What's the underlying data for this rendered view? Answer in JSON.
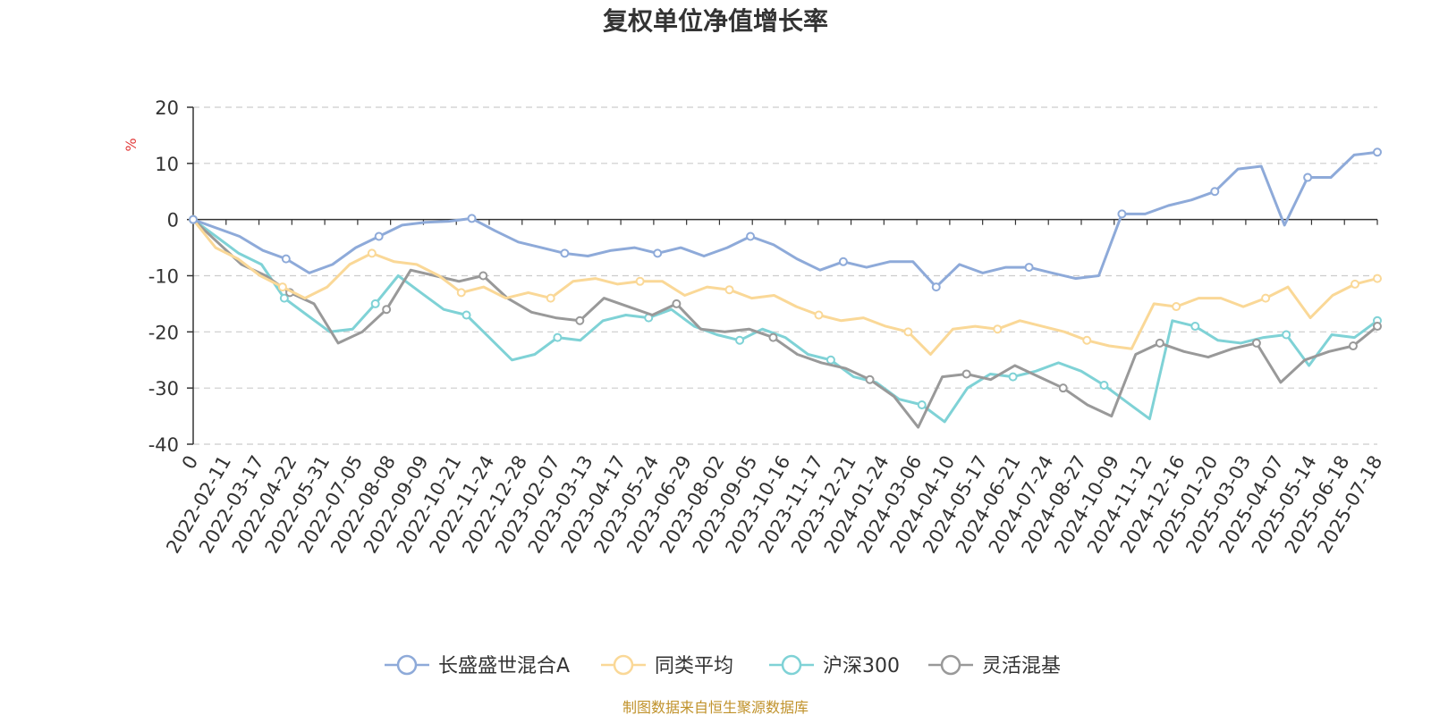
{
  "chart_data": {
    "type": "line",
    "title": "复权单位净值增长率",
    "ylabel": "%",
    "ylim": [
      -40,
      20
    ],
    "yticks": [
      20,
      10,
      0,
      -10,
      -20,
      -30,
      -40
    ],
    "grid": true,
    "legend_position": "bottom",
    "source": "制图数据来自恒生聚源数据库",
    "x_tick_labels": [
      "0",
      "2022-02-11",
      "2022-03-17",
      "2022-04-22",
      "2022-05-31",
      "2022-07-05",
      "2022-08-08",
      "2022-09-09",
      "2022-10-21",
      "2022-11-24",
      "2022-12-28",
      "2023-02-07",
      "2023-03-13",
      "2023-04-17",
      "2023-05-24",
      "2023-06-29",
      "2023-08-02",
      "2023-09-05",
      "2023-10-16",
      "2023-11-17",
      "2023-12-21",
      "2024-01-24",
      "2024-03-06",
      "2024-04-10",
      "2024-05-17",
      "2024-06-21",
      "2024-07-24",
      "2024-08-27",
      "2024-10-09",
      "2024-11-12",
      "2024-12-16",
      "2025-01-20",
      "2025-03-03",
      "2025-04-07",
      "2025-05-14",
      "2025-06-18",
      "2025-07-18"
    ],
    "series": [
      {
        "name": "长盛盛世混合A",
        "color": "#8eaad9",
        "values": [
          0,
          -1.5,
          -3,
          -5.5,
          -7,
          -9.5,
          -8,
          -5,
          -3,
          -1,
          -0.5,
          -0.3,
          0.2,
          -2,
          -4,
          -5,
          -6,
          -6.5,
          -5.5,
          -5,
          -6,
          -5,
          -6.5,
          -5,
          -3,
          -4.5,
          -7,
          -9,
          -7.5,
          -8.5,
          -7.5,
          -7.5,
          -12,
          -8,
          -9.5,
          -8.5,
          -8.5,
          -9.5,
          -10.5,
          -10,
          1,
          1,
          2.5,
          3.5,
          5,
          9,
          9.5,
          -1,
          7.5,
          7.5,
          11.5,
          12
        ]
      },
      {
        "name": "同类平均",
        "color": "#fad897",
        "values": [
          0,
          -5,
          -7,
          -10,
          -12,
          -14,
          -12,
          -8,
          -6,
          -7.5,
          -8,
          -10,
          -13,
          -12,
          -14,
          -13,
          -14,
          -11,
          -10.5,
          -11.5,
          -11,
          -11,
          -13.5,
          -12,
          -12.5,
          -14,
          -13.5,
          -15.5,
          -17,
          -18,
          -17.5,
          -19,
          -20,
          -24,
          -19.5,
          -19,
          -19.5,
          -18,
          -19,
          -20,
          -21.5,
          -22.5,
          -23,
          -15,
          -15.5,
          -14,
          -14,
          -15.5,
          -14,
          -12,
          -17.5,
          -13.5,
          -11.5,
          -10.5
        ]
      },
      {
        "name": "沪深300",
        "color": "#7fd2d6",
        "values": [
          0,
          -3,
          -6,
          -8,
          -14,
          -17,
          -20,
          -19.5,
          -15,
          -10,
          -13,
          -16,
          -17,
          -21,
          -25,
          -24,
          -21,
          -21.5,
          -18,
          -17,
          -17.5,
          -16,
          -19,
          -20.5,
          -21.5,
          -19.5,
          -21,
          -24,
          -25,
          -28,
          -29,
          -32,
          -33,
          -36,
          -30,
          -27.5,
          -28,
          -27,
          -25.5,
          -27,
          -29.5,
          -32.5,
          -35.5,
          -18,
          -19,
          -21.5,
          -22,
          -21,
          -20.5,
          -26,
          -20.5,
          -21,
          -18
        ]
      },
      {
        "name": "灵活混基",
        "color": "#999999",
        "values": [
          0,
          -4,
          -8,
          -10,
          -13,
          -15,
          -22,
          -20,
          -16,
          -9,
          -10,
          -11,
          -10,
          -14,
          -16.5,
          -17.5,
          -18,
          -14,
          -15.5,
          -17,
          -15,
          -19.5,
          -20,
          -19.5,
          -21,
          -24,
          -25.5,
          -26.5,
          -28.5,
          -31.5,
          -37,
          -28,
          -27.5,
          -28.5,
          -26,
          -28,
          -30,
          -33,
          -35,
          -24,
          -22,
          -23.5,
          -24.5,
          -23,
          -22,
          -29,
          -25,
          -23.5,
          -22.5,
          -19
        ]
      }
    ]
  }
}
